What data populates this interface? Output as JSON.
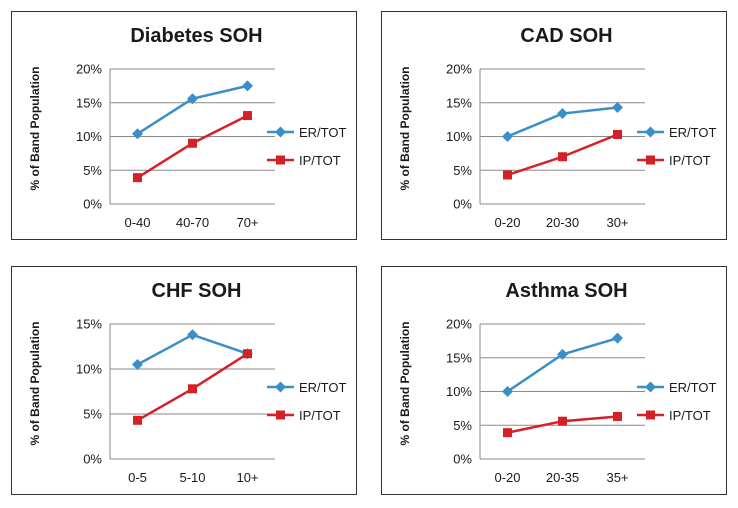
{
  "colors": {
    "er": "#3b8fc8",
    "ip": "#d62027"
  },
  "chart_data": [
    {
      "type": "line",
      "title": "Diabetes SOH",
      "ylabel": "% of Band Population",
      "categories": [
        "0-40",
        "40-70",
        "70+"
      ],
      "ylim": [
        0,
        20
      ],
      "yticks": [
        "0%",
        "5%",
        "10%",
        "15%",
        "20%"
      ],
      "grid": true,
      "legend": "right",
      "series": [
        {
          "name": "ER/TOT",
          "marker": "diamond",
          "values": [
            10.4,
            15.6,
            17.5
          ]
        },
        {
          "name": "IP/TOT",
          "marker": "square",
          "values": [
            3.9,
            9.0,
            13.1
          ]
        }
      ]
    },
    {
      "type": "line",
      "title": "CAD SOH",
      "ylabel": "% of Band Population",
      "categories": [
        "0-20",
        "20-30",
        "30+"
      ],
      "ylim": [
        0,
        20
      ],
      "yticks": [
        "0%",
        "5%",
        "10%",
        "15%",
        "20%"
      ],
      "grid": true,
      "legend": "right",
      "series": [
        {
          "name": "ER/TOT",
          "marker": "diamond",
          "values": [
            10.0,
            13.4,
            14.3
          ]
        },
        {
          "name": "IP/TOT",
          "marker": "square",
          "values": [
            4.3,
            7.0,
            10.3
          ]
        }
      ]
    },
    {
      "type": "line",
      "title": "CHF SOH",
      "ylabel": "% of Band Population",
      "categories": [
        "0-5",
        "5-10",
        "10+"
      ],
      "ylim": [
        0,
        15
      ],
      "yticks": [
        "0%",
        "5%",
        "10%",
        "15%"
      ],
      "grid": true,
      "legend": "right",
      "series": [
        {
          "name": "ER/TOT",
          "marker": "diamond",
          "values": [
            10.5,
            13.8,
            11.7
          ]
        },
        {
          "name": "IP/TOT",
          "marker": "square",
          "values": [
            4.3,
            7.8,
            11.7
          ]
        }
      ]
    },
    {
      "type": "line",
      "title": "Asthma SOH",
      "ylabel": "% of Band Population",
      "categories": [
        "0-20",
        "20-35",
        "35+"
      ],
      "ylim": [
        0,
        20
      ],
      "yticks": [
        "0%",
        "5%",
        "10%",
        "15%",
        "20%"
      ],
      "grid": true,
      "legend": "right",
      "series": [
        {
          "name": "ER/TOT",
          "marker": "diamond",
          "values": [
            10.0,
            15.5,
            17.9
          ]
        },
        {
          "name": "IP/TOT",
          "marker": "square",
          "values": [
            3.9,
            5.6,
            6.3
          ]
        }
      ]
    }
  ]
}
